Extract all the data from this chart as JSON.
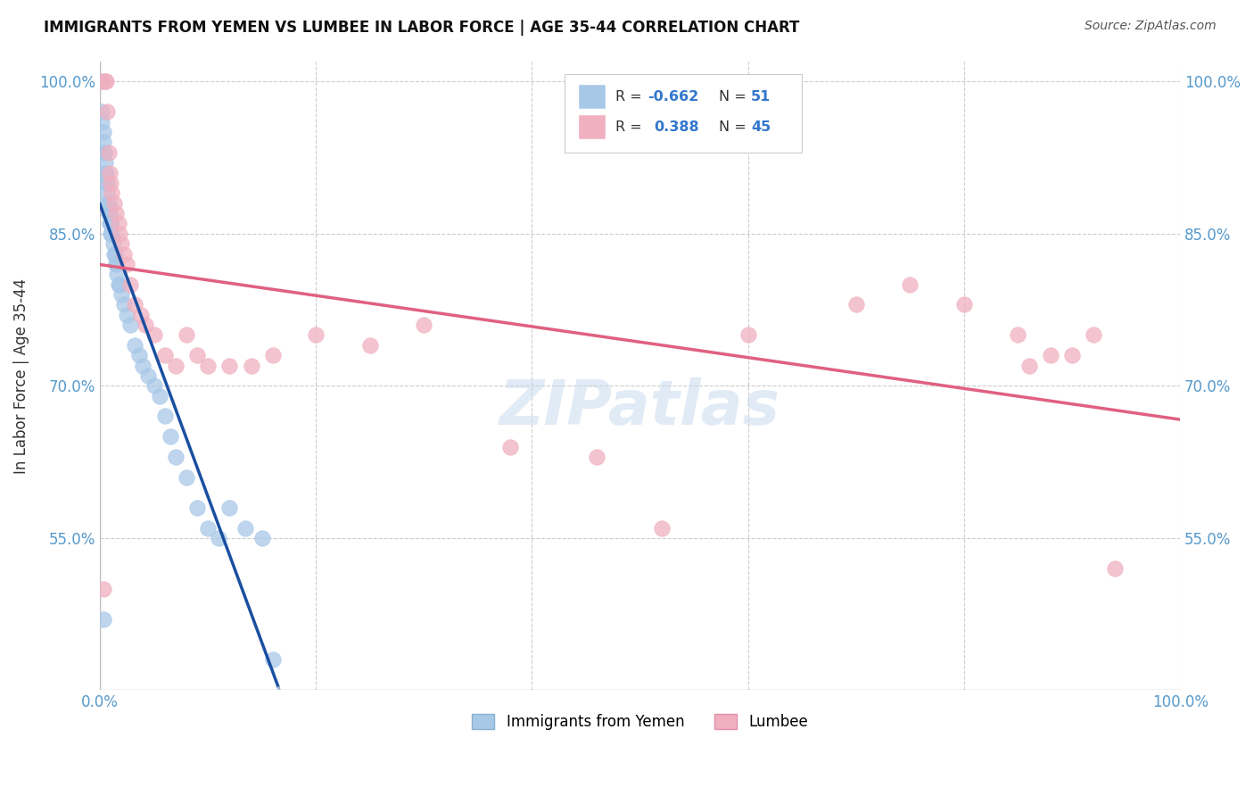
{
  "title": "IMMIGRANTS FROM YEMEN VS LUMBEE IN LABOR FORCE | AGE 35-44 CORRELATION CHART",
  "source": "Source: ZipAtlas.com",
  "ylabel": "In Labor Force | Age 35-44",
  "x_min": 0.0,
  "x_max": 1.0,
  "y_min": 0.4,
  "y_max": 1.02,
  "y_ticks": [
    0.55,
    0.7,
    0.85,
    1.0
  ],
  "y_tick_labels": [
    "55.0%",
    "70.0%",
    "85.0%",
    "100.0%"
  ],
  "x_ticks": [
    0.0,
    0.2,
    0.4,
    0.6,
    0.8,
    1.0
  ],
  "x_tick_labels": [
    "0.0%",
    "",
    "",
    "",
    "",
    "100.0%"
  ],
  "blue_color": "#a8c8e8",
  "pink_color": "#f0b0c0",
  "blue_line_color": "#1a4fa0",
  "pink_line_color": "#e06080",
  "blue_dash_color": "#a0b8d0",
  "watermark_color": "#c5d8ee",
  "tick_color": "#5599cc",
  "title_color": "#111111",
  "source_color": "#555555",
  "grid_color": "#cccccc",
  "background_color": "#ffffff",
  "yemen_x": [
    0.001,
    0.002,
    0.002,
    0.003,
    0.003,
    0.004,
    0.004,
    0.005,
    0.005,
    0.006,
    0.006,
    0.007,
    0.007,
    0.007,
    0.008,
    0.008,
    0.009,
    0.009,
    0.01,
    0.01,
    0.011,
    0.012,
    0.013,
    0.014,
    0.015,
    0.015,
    0.016,
    0.017,
    0.018,
    0.02,
    0.022,
    0.025,
    0.028,
    0.032,
    0.036,
    0.04,
    0.045,
    0.05,
    0.055,
    0.06,
    0.065,
    0.07,
    0.08,
    0.09,
    0.1,
    0.11,
    0.12,
    0.135,
    0.15,
    0.16,
    0.003
  ],
  "yemen_y": [
    1.0,
    0.97,
    0.96,
    0.95,
    0.94,
    0.93,
    0.93,
    0.92,
    0.91,
    0.91,
    0.9,
    0.9,
    0.89,
    0.88,
    0.88,
    0.87,
    0.87,
    0.86,
    0.86,
    0.85,
    0.85,
    0.84,
    0.83,
    0.83,
    0.82,
    0.82,
    0.81,
    0.8,
    0.8,
    0.79,
    0.78,
    0.77,
    0.76,
    0.74,
    0.73,
    0.72,
    0.71,
    0.7,
    0.69,
    0.67,
    0.65,
    0.63,
    0.61,
    0.58,
    0.56,
    0.55,
    0.58,
    0.56,
    0.55,
    0.43,
    0.47
  ],
  "lumbee_x": [
    0.002,
    0.005,
    0.006,
    0.007,
    0.008,
    0.009,
    0.01,
    0.011,
    0.013,
    0.015,
    0.017,
    0.018,
    0.02,
    0.022,
    0.025,
    0.028,
    0.032,
    0.038,
    0.042,
    0.05,
    0.06,
    0.07,
    0.08,
    0.09,
    0.1,
    0.12,
    0.14,
    0.16,
    0.2,
    0.25,
    0.3,
    0.38,
    0.46,
    0.52,
    0.6,
    0.7,
    0.75,
    0.8,
    0.85,
    0.86,
    0.88,
    0.9,
    0.92,
    0.94,
    0.003
  ],
  "lumbee_y": [
    1.0,
    1.0,
    1.0,
    0.97,
    0.93,
    0.91,
    0.9,
    0.89,
    0.88,
    0.87,
    0.86,
    0.85,
    0.84,
    0.83,
    0.82,
    0.8,
    0.78,
    0.77,
    0.76,
    0.75,
    0.73,
    0.72,
    0.75,
    0.73,
    0.72,
    0.72,
    0.72,
    0.73,
    0.75,
    0.74,
    0.76,
    0.64,
    0.63,
    0.56,
    0.75,
    0.78,
    0.8,
    0.78,
    0.75,
    0.72,
    0.73,
    0.73,
    0.75,
    0.52,
    0.5
  ],
  "legend_r1": "-0.662",
  "legend_n1": "51",
  "legend_r2": "0.388",
  "legend_n2": "45"
}
